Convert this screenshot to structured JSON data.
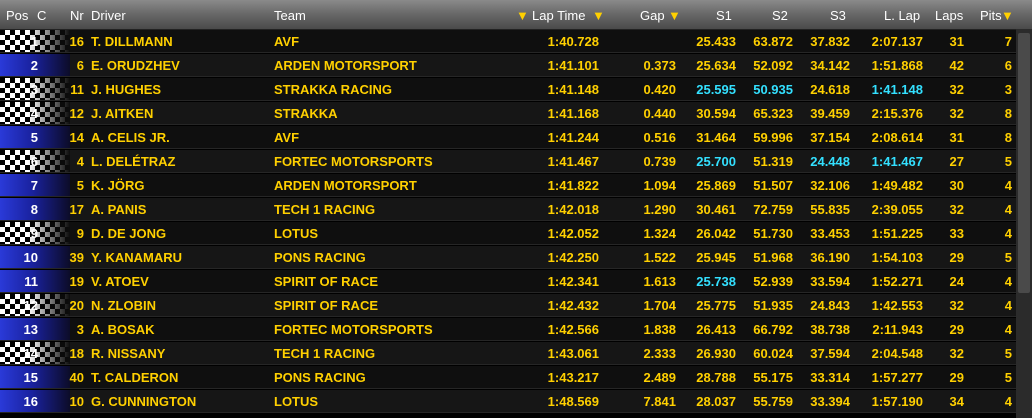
{
  "header": {
    "pos": "Pos",
    "c": "C",
    "nr": "Nr",
    "driver": "Driver",
    "team": "Team",
    "lap_time": "Lap Time",
    "gap": "Gap",
    "s1": "S1",
    "s2": "S2",
    "s3": "S3",
    "l_lap": "L. Lap",
    "laps": "Laps",
    "pits": "Pits",
    "sort_glyph": "▼"
  },
  "colors": {
    "text": "#ffd000",
    "highlight": "#33e0ff",
    "flag_blue": "#2a3ad8"
  },
  "rows": [
    {
      "pos": "1",
      "nr": "16",
      "driver": "T. DILLMANN",
      "team": "AVF",
      "lap": "1:40.728",
      "gap": "",
      "s1": "25.433",
      "s2": "63.872",
      "s3": "37.832",
      "llap": "2:07.137",
      "laps": "31",
      "pits": "7",
      "flag": "checker",
      "hl": []
    },
    {
      "pos": "2",
      "nr": "6",
      "driver": "E. ORUDZHEV",
      "team": "ARDEN MOTORSPORT",
      "lap": "1:41.101",
      "gap": "0.373",
      "s1": "25.634",
      "s2": "52.092",
      "s3": "34.142",
      "llap": "1:51.868",
      "laps": "42",
      "pits": "6",
      "flag": "blue",
      "hl": []
    },
    {
      "pos": "3",
      "nr": "11",
      "driver": "J. HUGHES",
      "team": "STRAKKA RACING",
      "lap": "1:41.148",
      "gap": "0.420",
      "s1": "25.595",
      "s2": "50.935",
      "s3": "24.618",
      "llap": "1:41.148",
      "laps": "32",
      "pits": "3",
      "flag": "checker",
      "hl": [
        "s1",
        "s2",
        "llap"
      ]
    },
    {
      "pos": "4",
      "nr": "12",
      "driver": "J. AITKEN",
      "team": "STRAKKA",
      "lap": "1:41.168",
      "gap": "0.440",
      "s1": "30.594",
      "s2": "65.323",
      "s3": "39.459",
      "llap": "2:15.376",
      "laps": "32",
      "pits": "8",
      "flag": "checker",
      "hl": []
    },
    {
      "pos": "5",
      "nr": "14",
      "driver": "A. CELIS JR.",
      "team": "AVF",
      "lap": "1:41.244",
      "gap": "0.516",
      "s1": "31.464",
      "s2": "59.996",
      "s3": "37.154",
      "llap": "2:08.614",
      "laps": "31",
      "pits": "8",
      "flag": "blue",
      "hl": []
    },
    {
      "pos": "6",
      "nr": "4",
      "driver": "L. DELÉTRAZ",
      "team": "FORTEC MOTORSPORTS",
      "lap": "1:41.467",
      "gap": "0.739",
      "s1": "25.700",
      "s2": "51.319",
      "s3": "24.448",
      "llap": "1:41.467",
      "laps": "27",
      "pits": "5",
      "flag": "checker",
      "hl": [
        "s1",
        "s3",
        "llap"
      ]
    },
    {
      "pos": "7",
      "nr": "5",
      "driver": "K. JÖRG",
      "team": "ARDEN MOTORSPORT",
      "lap": "1:41.822",
      "gap": "1.094",
      "s1": "25.869",
      "s2": "51.507",
      "s3": "32.106",
      "llap": "1:49.482",
      "laps": "30",
      "pits": "4",
      "flag": "blue",
      "hl": []
    },
    {
      "pos": "8",
      "nr": "17",
      "driver": "A. PANIS",
      "team": "TECH 1 RACING",
      "lap": "1:42.018",
      "gap": "1.290",
      "s1": "30.461",
      "s2": "72.759",
      "s3": "55.835",
      "llap": "2:39.055",
      "laps": "32",
      "pits": "4",
      "flag": "blue",
      "hl": []
    },
    {
      "pos": "9",
      "nr": "9",
      "driver": "D. DE JONG",
      "team": "LOTUS",
      "lap": "1:42.052",
      "gap": "1.324",
      "s1": "26.042",
      "s2": "51.730",
      "s3": "33.453",
      "llap": "1:51.225",
      "laps": "33",
      "pits": "4",
      "flag": "checker",
      "hl": []
    },
    {
      "pos": "10",
      "nr": "39",
      "driver": "Y. KANAMARU",
      "team": "PONS RACING",
      "lap": "1:42.250",
      "gap": "1.522",
      "s1": "25.945",
      "s2": "51.968",
      "s3": "36.190",
      "llap": "1:54.103",
      "laps": "29",
      "pits": "5",
      "flag": "blue",
      "hl": []
    },
    {
      "pos": "11",
      "nr": "19",
      "driver": "V. ATOEV",
      "team": "SPIRIT OF RACE",
      "lap": "1:42.341",
      "gap": "1.613",
      "s1": "25.738",
      "s2": "52.939",
      "s3": "33.594",
      "llap": "1:52.271",
      "laps": "24",
      "pits": "4",
      "flag": "blue",
      "hl": [
        "s1"
      ]
    },
    {
      "pos": "12",
      "nr": "20",
      "driver": "N. ZLOBIN",
      "team": "SPIRIT OF RACE",
      "lap": "1:42.432",
      "gap": "1.704",
      "s1": "25.775",
      "s2": "51.935",
      "s3": "24.843",
      "llap": "1:42.553",
      "laps": "32",
      "pits": "4",
      "flag": "checker",
      "hl": []
    },
    {
      "pos": "13",
      "nr": "3",
      "driver": "A. BOSAK",
      "team": "FORTEC MOTORSPORTS",
      "lap": "1:42.566",
      "gap": "1.838",
      "s1": "26.413",
      "s2": "66.792",
      "s3": "38.738",
      "llap": "2:11.943",
      "laps": "29",
      "pits": "4",
      "flag": "blue",
      "hl": []
    },
    {
      "pos": "14",
      "nr": "18",
      "driver": "R. NISSANY",
      "team": "TECH 1 RACING",
      "lap": "1:43.061",
      "gap": "2.333",
      "s1": "26.930",
      "s2": "60.024",
      "s3": "37.594",
      "llap": "2:04.548",
      "laps": "32",
      "pits": "5",
      "flag": "checker",
      "hl": []
    },
    {
      "pos": "15",
      "nr": "40",
      "driver": "T. CALDERON",
      "team": "PONS RACING",
      "lap": "1:43.217",
      "gap": "2.489",
      "s1": "28.788",
      "s2": "55.175",
      "s3": "33.314",
      "llap": "1:57.277",
      "laps": "29",
      "pits": "5",
      "flag": "blue",
      "hl": []
    },
    {
      "pos": "16",
      "nr": "10",
      "driver": "G. CUNNINGTON",
      "team": "LOTUS",
      "lap": "1:48.569",
      "gap": "7.841",
      "s1": "28.037",
      "s2": "55.759",
      "s3": "33.394",
      "llap": "1:57.190",
      "laps": "34",
      "pits": "4",
      "flag": "blue",
      "hl": []
    }
  ]
}
